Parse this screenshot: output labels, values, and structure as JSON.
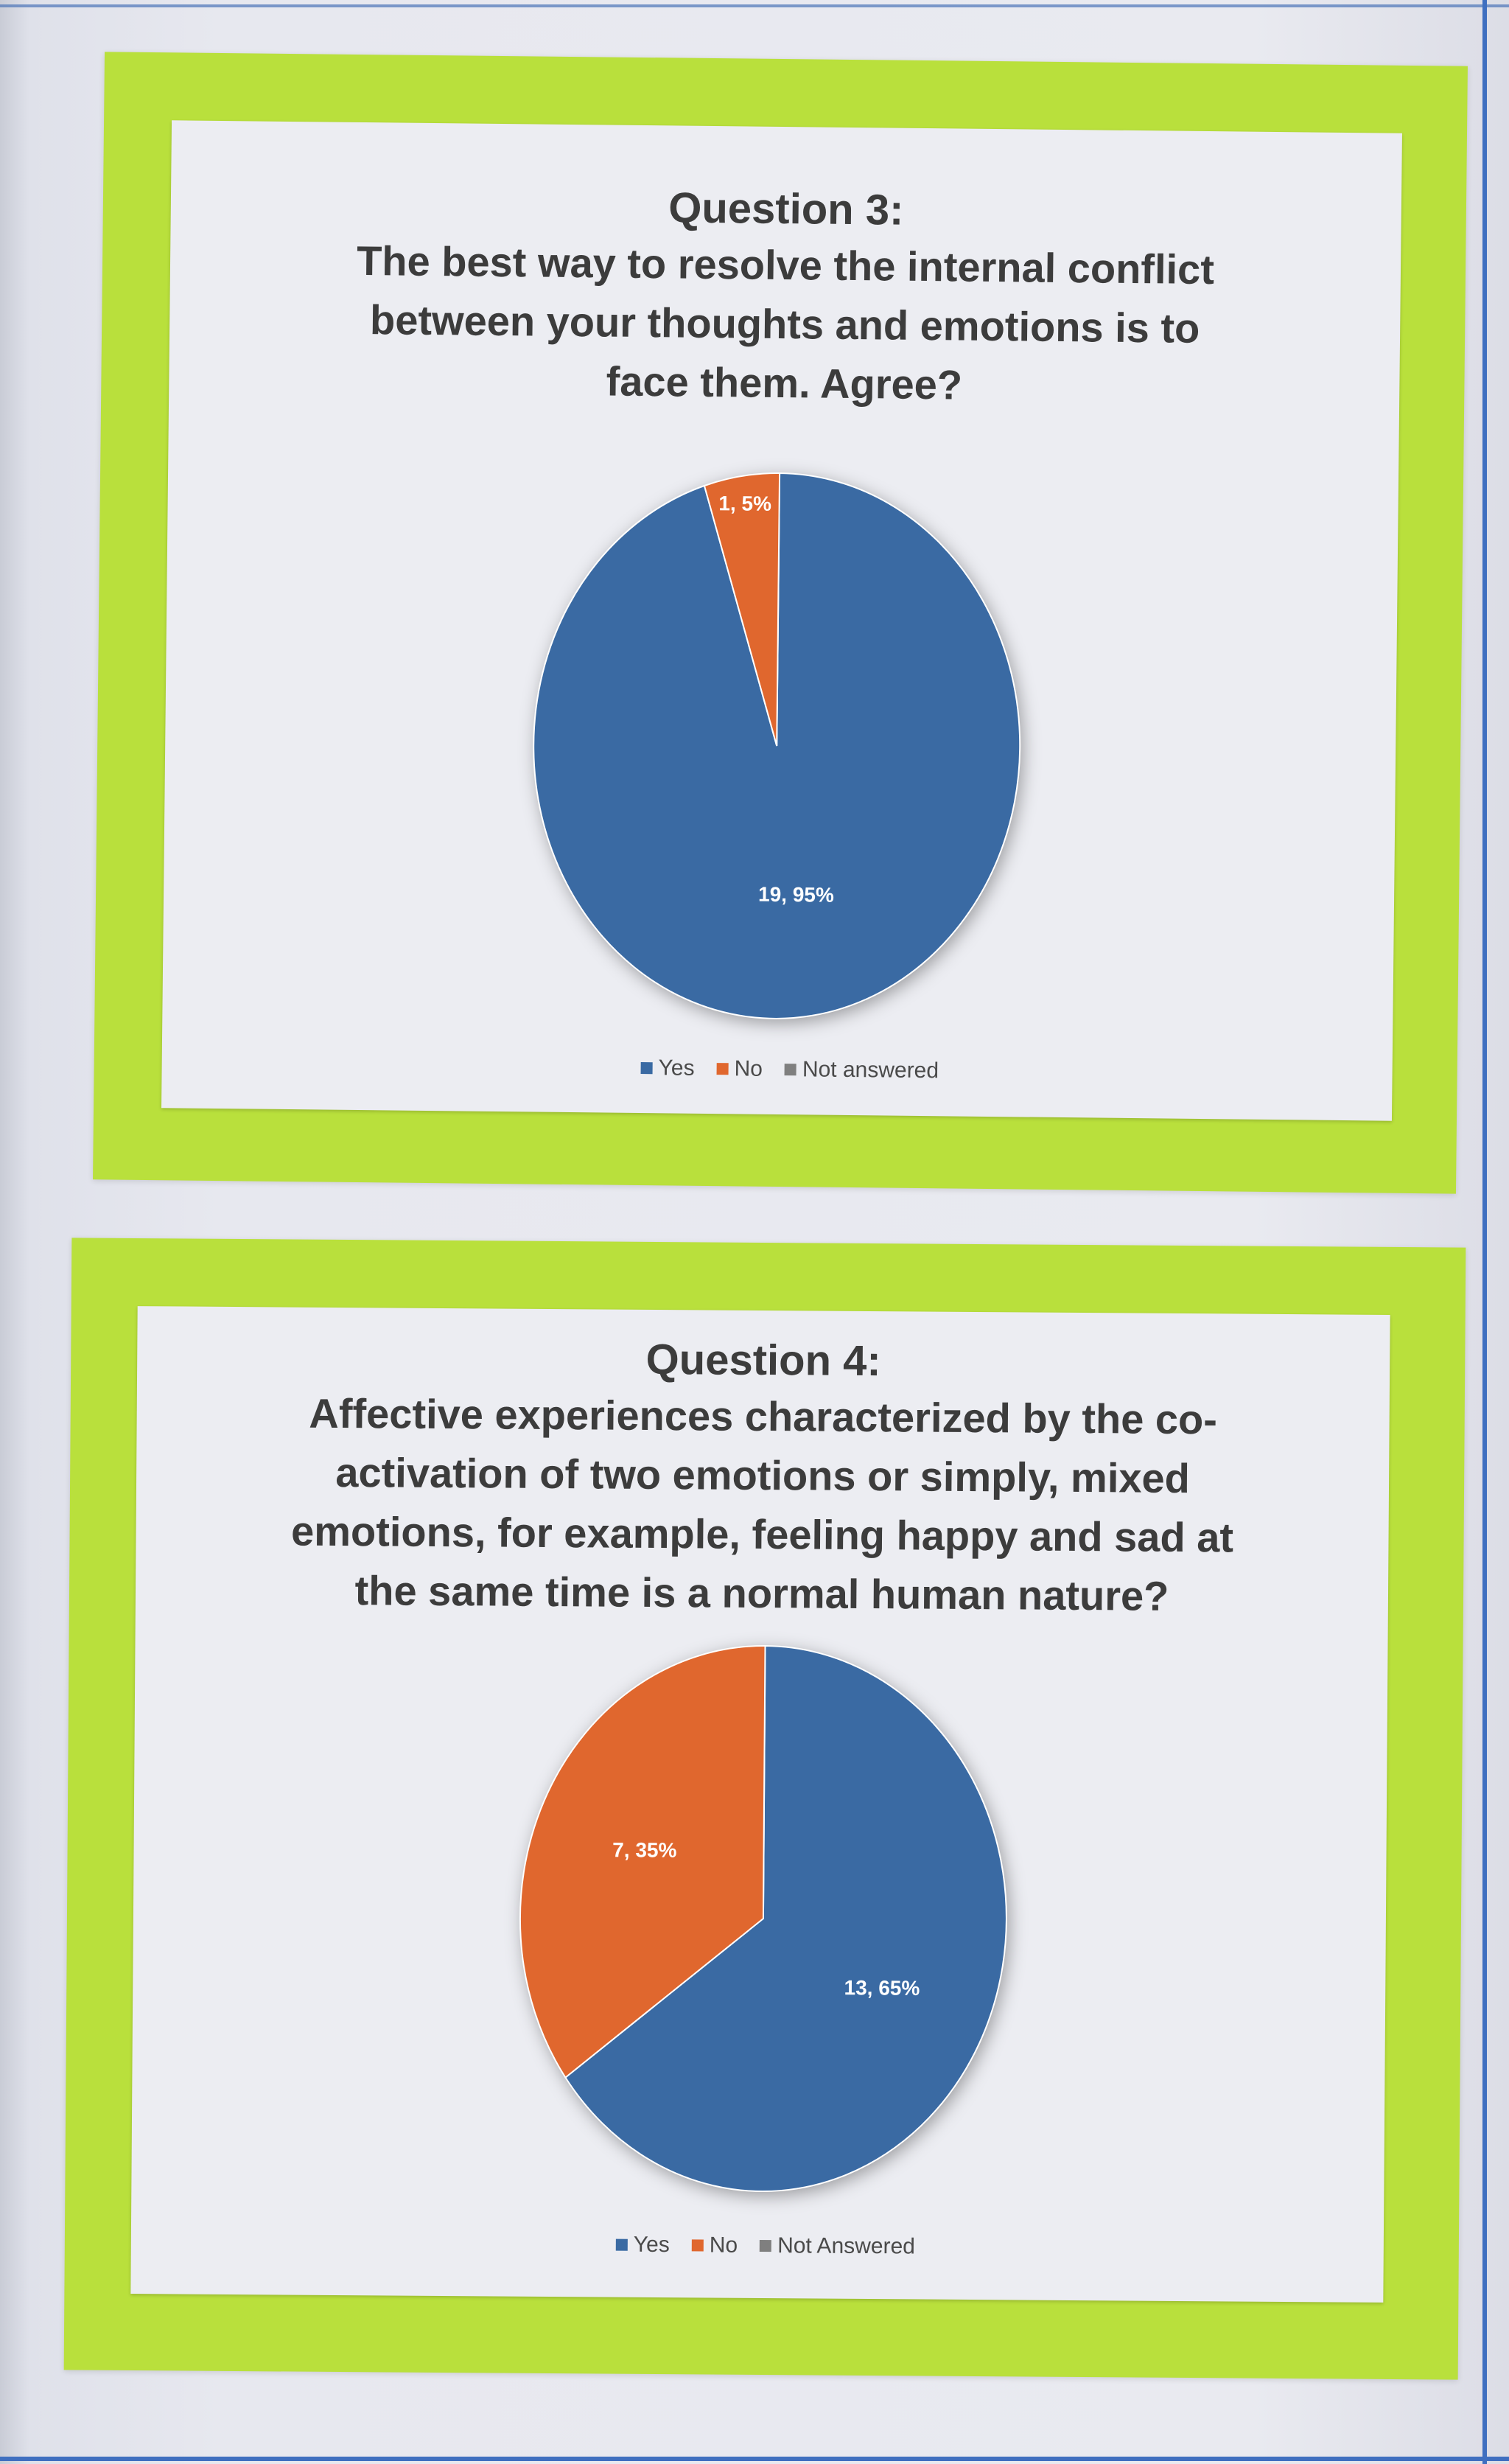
{
  "colors": {
    "yes": "#3a6aa3",
    "no": "#e0672e",
    "not_answered": "#7f7f7f",
    "frame": "#b9e03c",
    "label_text": "#ffffff"
  },
  "chart_data": [
    {
      "type": "pie",
      "title": "Question 3:",
      "subtitle": "The best way to resolve the internal conflict between your thoughts and emotions is to face them. Agree?",
      "series": [
        {
          "name": "Yes",
          "value": 19,
          "percent": 95,
          "label": "19, 95%"
        },
        {
          "name": "No",
          "value": 1,
          "percent": 5,
          "label": "1, 5%"
        },
        {
          "name": "Not answered",
          "value": 0,
          "percent": 0,
          "label": ""
        }
      ],
      "legend": [
        "Yes",
        "No",
        "Not answered"
      ],
      "legend_position": "bottom"
    },
    {
      "type": "pie",
      "title": "Question 4:",
      "subtitle": "Affective experiences characterized by the co-activation of two emotions or simply, mixed emotions, for example, feeling happy and sad at the same time is a normal human nature?",
      "series": [
        {
          "name": "Yes",
          "value": 13,
          "percent": 65,
          "label": "13, 65%"
        },
        {
          "name": "No",
          "value": 7,
          "percent": 35,
          "label": "7, 35%"
        },
        {
          "name": "Not Answered",
          "value": 0,
          "percent": 0,
          "label": ""
        }
      ],
      "legend": [
        "Yes",
        "No",
        "Not Answered"
      ],
      "legend_position": "bottom"
    }
  ]
}
